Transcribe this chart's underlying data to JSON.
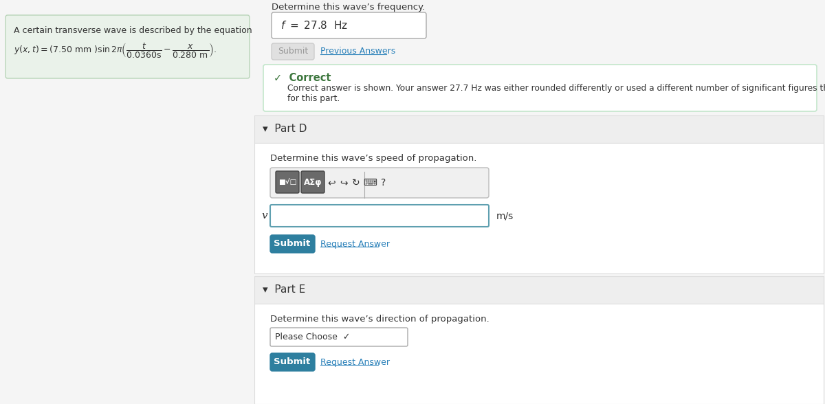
{
  "bg_color": "#f5f5f5",
  "white": "#ffffff",
  "teal_btn": "#2e7f9f",
  "light_gray": "#e0e0e0",
  "border_gray": "#cccccc",
  "text_dark": "#333333",
  "link_color": "#2980b9",
  "correct_green": "#3c763d",
  "correct_border": "#c3e6cb",
  "left_panel_bg": "#eaf2ea",
  "left_panel_border": "#b8d4b8",
  "eq_text_line1": "A certain transverse wave is described by the equation",
  "freq_label": "Determine this wave’s frequency.",
  "submit_grayed": "Submit",
  "prev_answers": "Previous Answers",
  "correct_check": "✓  Correct",
  "correct_msg": "Correct answer is shown. Your answer 27.7 Hz was either rounded differently or used a different number of significant figures than required\nfor this part.",
  "partD_label": "▾  Part D",
  "partD_desc": "Determine this wave’s speed of propagation.",
  "partD_v_label": "v =",
  "partD_unit": "m/s",
  "submit_btn": "Submit",
  "request_answer": "Request Answer",
  "partE_label": "▾  Part E",
  "partE_desc": "Determine this wave’s direction of propagation.",
  "dropdown_text": "Please Choose ✓",
  "section_header_bg": "#eeeeee",
  "section_border": "#dddddd",
  "toolbar_bg": "#f0f0f0",
  "toolbar_border": "#bbbbbb",
  "btn_dark": "#6a6a6a",
  "input_border": "#5fa0b0"
}
